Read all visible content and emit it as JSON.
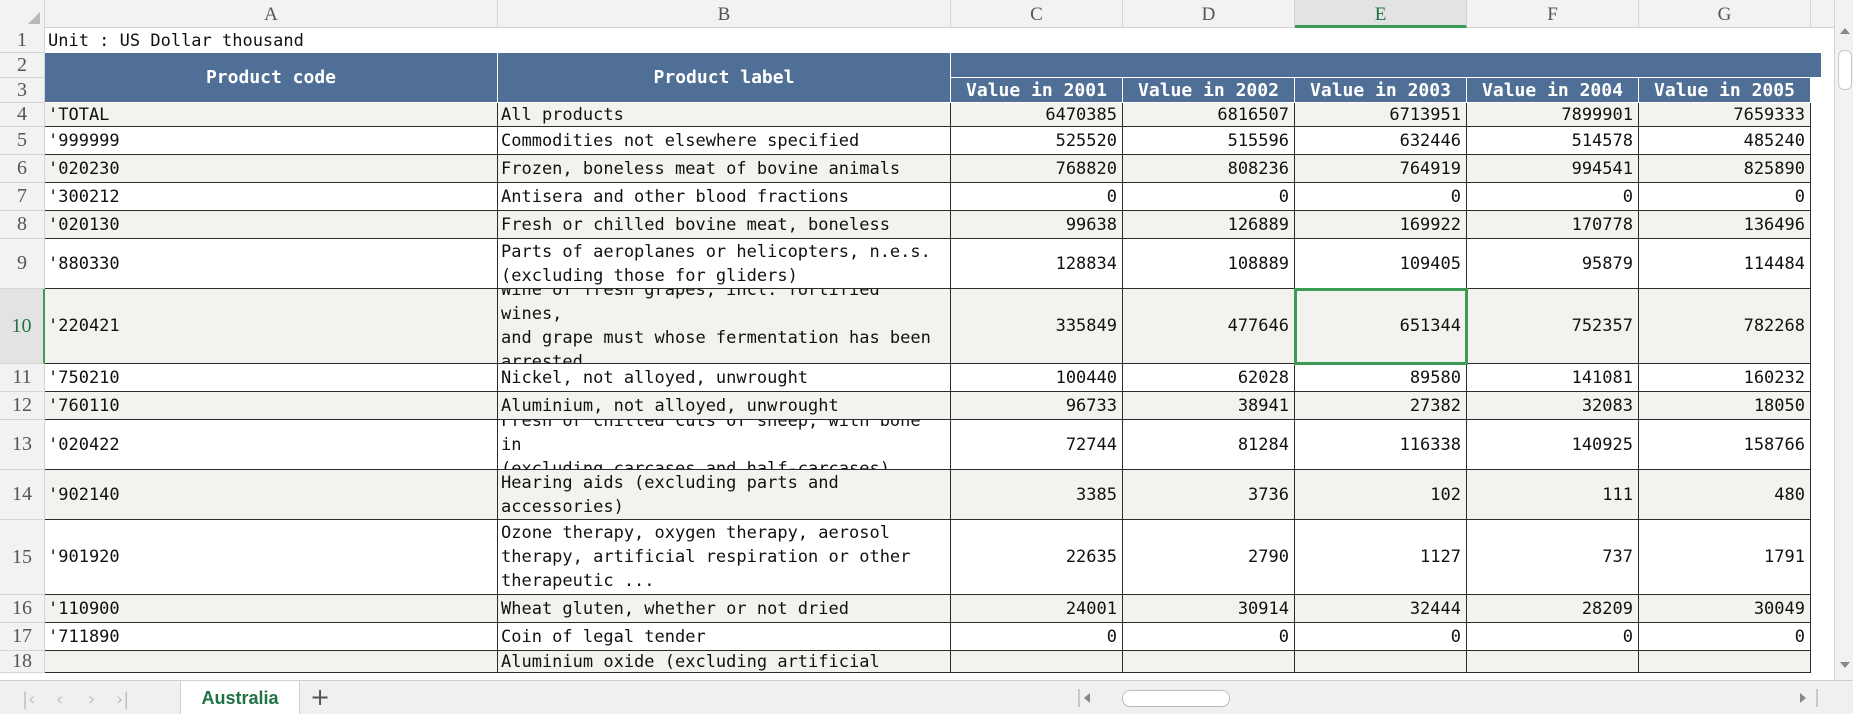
{
  "sheet": {
    "columns": [
      "A",
      "B",
      "C",
      "D",
      "E",
      "F",
      "G"
    ],
    "active_column": "E",
    "active_row": "10",
    "unit_text": "Unit : US Dollar thousand",
    "headers": {
      "product_code": "Product code",
      "product_label": "Product label",
      "years": [
        "Value in 2001",
        "Value in 2002",
        "Value in 2003",
        "Value in 2004",
        "Value in 2005"
      ]
    },
    "row_numbers": [
      "1",
      "2",
      "3",
      "4",
      "5",
      "6",
      "7",
      "8",
      "9",
      "10",
      "11",
      "12",
      "13",
      "14",
      "15",
      "16",
      "17",
      "18"
    ],
    "rows": [
      {
        "code": "'TOTAL",
        "label": "All products",
        "values": [
          "6470385",
          "6816507",
          "6713951",
          "7899901",
          "7659333"
        ]
      },
      {
        "code": "'999999",
        "label": "Commodities not elsewhere specified",
        "values": [
          "525520",
          "515596",
          "632446",
          "514578",
          "485240"
        ]
      },
      {
        "code": "'020230",
        "label": "Frozen, boneless meat of bovine animals",
        "values": [
          "768820",
          "808236",
          "764919",
          "994541",
          "825890"
        ]
      },
      {
        "code": "'300212",
        "label": "Antisera and other blood fractions",
        "values": [
          "0",
          "0",
          "0",
          "0",
          "0"
        ]
      },
      {
        "code": "'020130",
        "label": "Fresh or chilled bovine meat, boneless",
        "values": [
          "99638",
          "126889",
          "169922",
          "170778",
          "136496"
        ]
      },
      {
        "code": "'880330",
        "label": "Parts of aeroplanes or helicopters, n.e.s.\n(excluding those for gliders)",
        "values": [
          "128834",
          "108889",
          "109405",
          "95879",
          "114484"
        ]
      },
      {
        "code": "'220421",
        "label": "Wine of fresh grapes, incl. fortified wines,\nand grape must whose fermentation has been\narrested ...",
        "values": [
          "335849",
          "477646",
          "651344",
          "752357",
          "782268"
        ]
      },
      {
        "code": "'750210",
        "label": "Nickel, not alloyed, unwrought",
        "values": [
          "100440",
          "62028",
          "89580",
          "141081",
          "160232"
        ]
      },
      {
        "code": "'760110",
        "label": "Aluminium, not alloyed, unwrought",
        "values": [
          "96733",
          "38941",
          "27382",
          "32083",
          "18050"
        ]
      },
      {
        "code": "'020422",
        "label": "Fresh or chilled cuts of sheep, with bone in\n(excluding carcases and half-carcases)",
        "values": [
          "72744",
          "81284",
          "116338",
          "140925",
          "158766"
        ]
      },
      {
        "code": "'902140",
        "label": "Hearing aids (excluding parts and\naccessories)",
        "values": [
          "3385",
          "3736",
          "102",
          "111",
          "480"
        ]
      },
      {
        "code": "'901920",
        "label": "Ozone therapy, oxygen therapy, aerosol\ntherapy, artificial respiration or other\ntherapeutic ...",
        "values": [
          "22635",
          "2790",
          "1127",
          "737",
          "1791"
        ]
      },
      {
        "code": "'110900",
        "label": "Wheat gluten, whether or not dried",
        "values": [
          "24001",
          "30914",
          "32444",
          "28209",
          "30049"
        ]
      },
      {
        "code": "'711890",
        "label": "Coin of legal tender",
        "values": [
          "0",
          "0",
          "0",
          "0",
          "0"
        ]
      },
      {
        "code": "",
        "label": "Aluminium oxide (excluding artificial",
        "values": [
          "",
          "",
          "",
          "",
          ""
        ]
      }
    ]
  },
  "tabs": {
    "sheet_name": "Australia",
    "add_label": "+"
  },
  "colors": {
    "header_fill": "#506f97",
    "active_green": "#3c9b55",
    "band_fill": "#f3f2ee"
  },
  "icons": [
    "first-sheet-icon",
    "prev-sheet-icon",
    "next-sheet-icon",
    "last-sheet-icon",
    "add-sheet-icon",
    "scroll-left-icon",
    "scroll-right-icon",
    "scroll-up-icon",
    "scroll-down-icon"
  ]
}
